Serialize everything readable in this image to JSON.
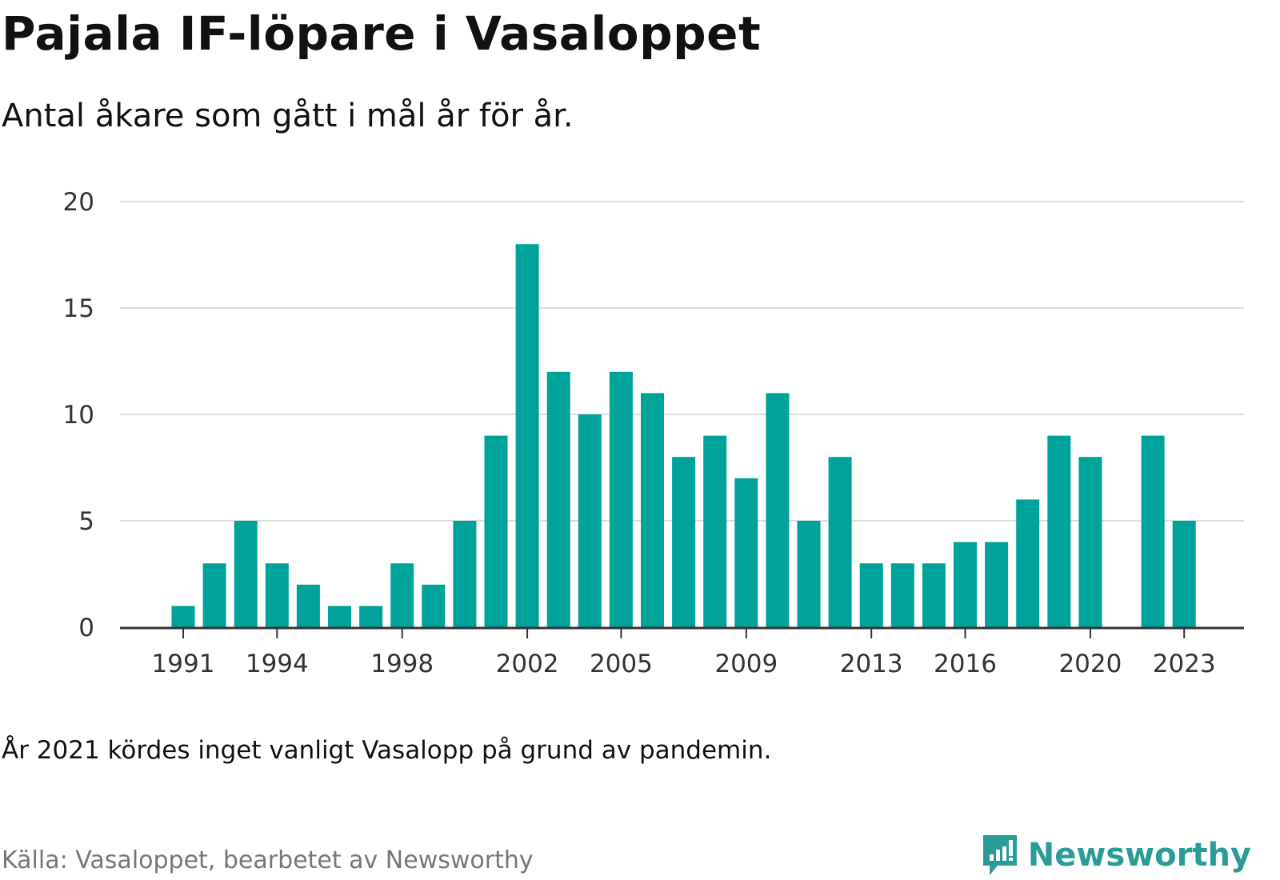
{
  "title": "Pajala IF-löpare i Vasaloppet",
  "subtitle": "Antal åkare som gått i mål år för år.",
  "note": "År 2021 kördes inget vanligt Vasalopp på grund av pandemin.",
  "source": "Källa: Vasaloppet, bearbetet av Newsworthy",
  "brand": {
    "name": "Newsworthy",
    "logo_icon": "newsworthy-logo-icon"
  },
  "colors": {
    "bar": "#00a39a",
    "grid": "#dddddd",
    "axis": "#333333",
    "brand": "#2a9c97"
  },
  "chart_data": {
    "type": "bar",
    "title": "Pajala IF-löpare i Vasaloppet",
    "subtitle": "Antal åkare som gått i mål år för år.",
    "xlabel": "",
    "ylabel": "",
    "categories": [
      1991,
      1992,
      1993,
      1994,
      1995,
      1996,
      1997,
      1998,
      1999,
      2000,
      2001,
      2002,
      2003,
      2004,
      2005,
      2006,
      2007,
      2008,
      2009,
      2010,
      2011,
      2012,
      2013,
      2014,
      2015,
      2016,
      2017,
      2018,
      2019,
      2020,
      2021,
      2022,
      2023
    ],
    "values": [
      1,
      3,
      5,
      3,
      2,
      1,
      1,
      3,
      2,
      5,
      9,
      18,
      12,
      10,
      12,
      11,
      8,
      9,
      7,
      11,
      5,
      8,
      3,
      3,
      3,
      4,
      4,
      6,
      9,
      8,
      0,
      9,
      5
    ],
    "x_tick_labels": [
      "1991",
      "1994",
      "1998",
      "2002",
      "2005",
      "2009",
      "2013",
      "2016",
      "2020",
      "2023"
    ],
    "y_ticks": [
      0,
      5,
      10,
      15,
      20
    ],
    "ylim": [
      0,
      20
    ],
    "grid": true,
    "legend": "none"
  }
}
